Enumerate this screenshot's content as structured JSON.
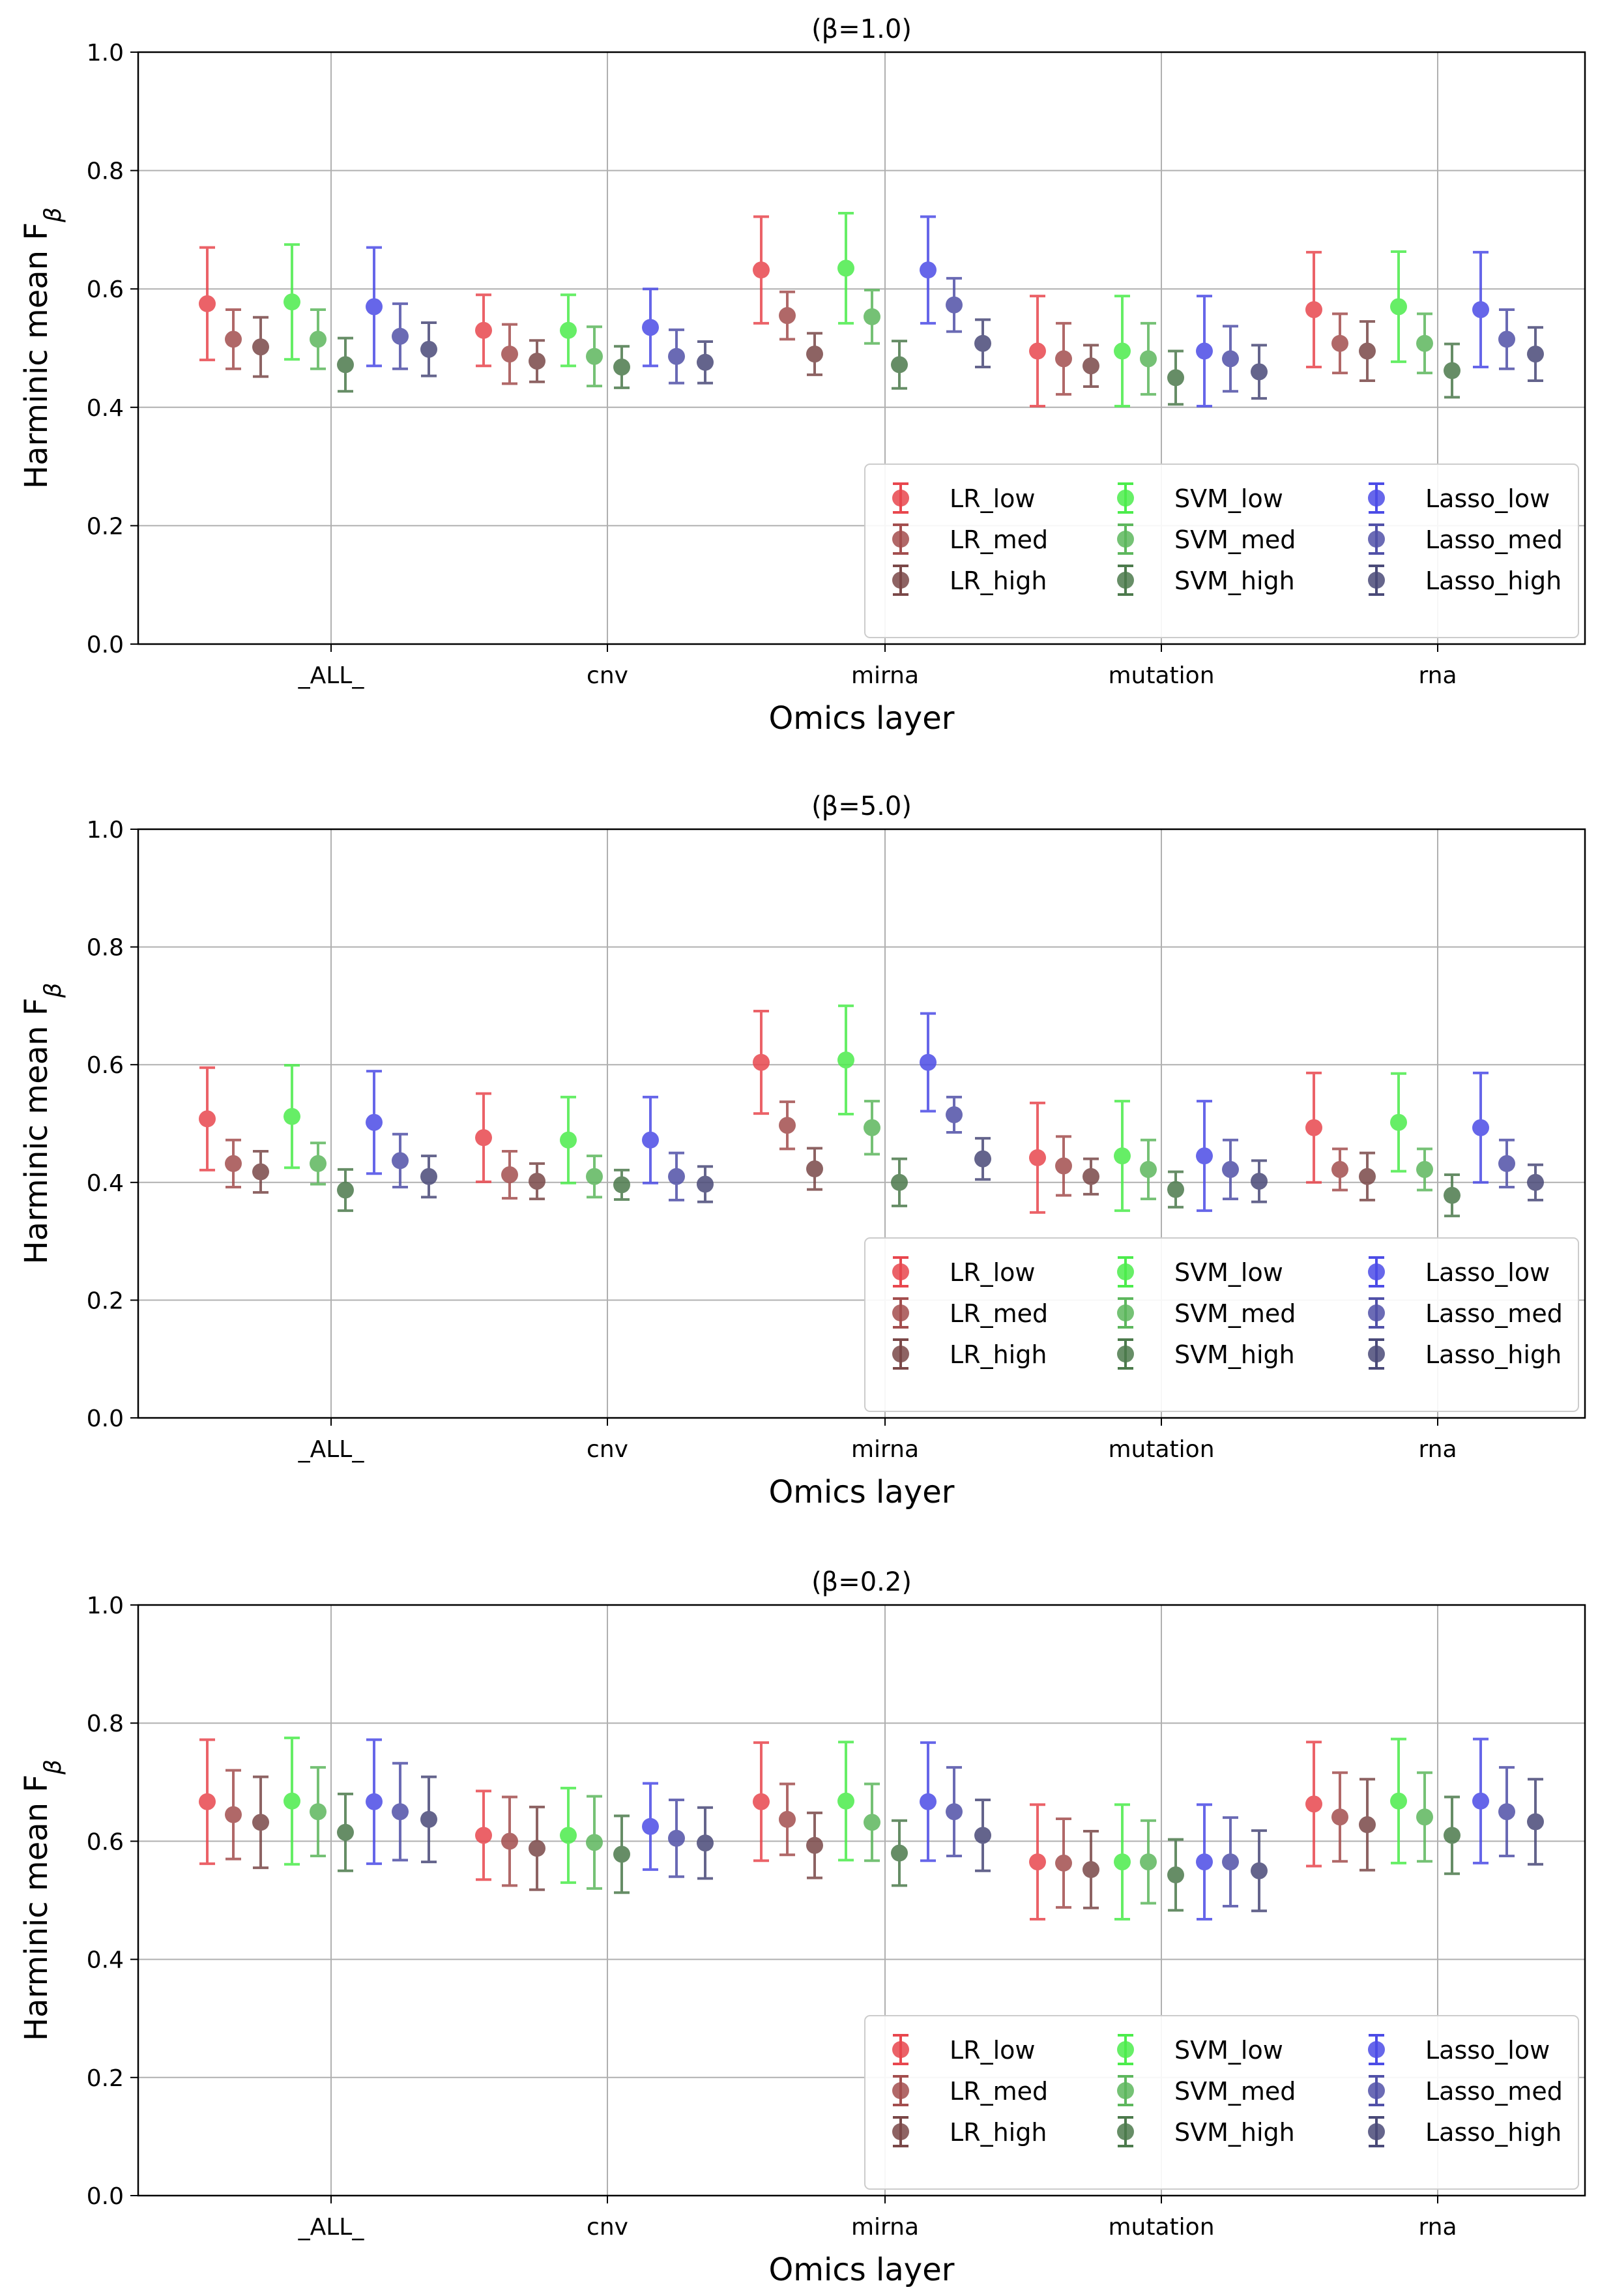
{
  "chart_data": [
    {
      "type": "scatter",
      "title": "(β=1.0)",
      "xlabel": "Omics layer",
      "ylabel": "Harminic mean F",
      "ylabel_sub": "β",
      "ylim": [
        0.0,
        1.0
      ],
      "yticks": [
        "0.0",
        "0.2",
        "0.4",
        "0.6",
        "0.8",
        "1.0"
      ],
      "grid": true,
      "legend_loc": "lower-right",
      "categories": [
        "_ALL_",
        "cnv",
        "mirna",
        "mutation",
        "rna"
      ],
      "series": [
        {
          "name": "LR_low",
          "color": "#e8474e",
          "values": [
            0.575,
            0.53,
            0.632,
            0.495,
            0.565
          ],
          "errors": [
            0.095,
            0.06,
            0.09,
            0.093,
            0.097
          ]
        },
        {
          "name": "LR_med",
          "color": "#a34e4e",
          "values": [
            0.515,
            0.49,
            0.555,
            0.482,
            0.508
          ],
          "errors": [
            0.05,
            0.05,
            0.04,
            0.06,
            0.05
          ]
        },
        {
          "name": "LR_high",
          "color": "#7a4848",
          "values": [
            0.502,
            0.478,
            0.49,
            0.47,
            0.495
          ],
          "errors": [
            0.05,
            0.035,
            0.035,
            0.035,
            0.05
          ]
        },
        {
          "name": "SVM_low",
          "color": "#4cec4c",
          "values": [
            0.578,
            0.53,
            0.635,
            0.495,
            0.57
          ],
          "errors": [
            0.097,
            0.06,
            0.093,
            0.093,
            0.093
          ]
        },
        {
          "name": "SVM_med",
          "color": "#5db75d",
          "values": [
            0.515,
            0.486,
            0.553,
            0.482,
            0.508
          ],
          "errors": [
            0.05,
            0.05,
            0.045,
            0.06,
            0.05
          ]
        },
        {
          "name": "SVM_high",
          "color": "#4c7a4c",
          "values": [
            0.472,
            0.468,
            0.472,
            0.45,
            0.462
          ],
          "errors": [
            0.045,
            0.035,
            0.04,
            0.045,
            0.045
          ]
        },
        {
          "name": "Lasso_low",
          "color": "#4c4ce6",
          "values": [
            0.57,
            0.535,
            0.632,
            0.495,
            0.565
          ],
          "errors": [
            0.1,
            0.065,
            0.09,
            0.093,
            0.097
          ]
        },
        {
          "name": "Lasso_med",
          "color": "#5151a8",
          "values": [
            0.52,
            0.486,
            0.573,
            0.482,
            0.515
          ],
          "errors": [
            0.055,
            0.045,
            0.045,
            0.055,
            0.05
          ]
        },
        {
          "name": "Lasso_high",
          "color": "#4a4a78",
          "values": [
            0.498,
            0.476,
            0.508,
            0.46,
            0.49
          ],
          "errors": [
            0.045,
            0.035,
            0.04,
            0.045,
            0.045
          ]
        }
      ]
    },
    {
      "type": "scatter",
      "title": "(β=5.0)",
      "xlabel": "Omics layer",
      "ylabel": "Harminic mean F",
      "ylabel_sub": "β",
      "ylim": [
        0.0,
        1.0
      ],
      "yticks": [
        "0.0",
        "0.2",
        "0.4",
        "0.6",
        "0.8",
        "1.0"
      ],
      "grid": true,
      "legend_loc": "lower-right",
      "categories": [
        "_ALL_",
        "cnv",
        "mirna",
        "mutation",
        "rna"
      ],
      "series": [
        {
          "name": "LR_low",
          "color": "#e8474e",
          "values": [
            0.508,
            0.476,
            0.604,
            0.442,
            0.493
          ],
          "errors": [
            0.087,
            0.075,
            0.087,
            0.093,
            0.093
          ]
        },
        {
          "name": "LR_med",
          "color": "#a34e4e",
          "values": [
            0.432,
            0.413,
            0.497,
            0.428,
            0.422
          ],
          "errors": [
            0.04,
            0.04,
            0.04,
            0.05,
            0.035
          ]
        },
        {
          "name": "LR_high",
          "color": "#7a4848",
          "values": [
            0.418,
            0.402,
            0.423,
            0.41,
            0.41
          ],
          "errors": [
            0.035,
            0.03,
            0.035,
            0.03,
            0.04
          ]
        },
        {
          "name": "SVM_low",
          "color": "#4cec4c",
          "values": [
            0.512,
            0.472,
            0.608,
            0.445,
            0.502
          ],
          "errors": [
            0.087,
            0.073,
            0.092,
            0.093,
            0.083
          ]
        },
        {
          "name": "SVM_med",
          "color": "#5db75d",
          "values": [
            0.432,
            0.41,
            0.493,
            0.422,
            0.422
          ],
          "errors": [
            0.035,
            0.035,
            0.045,
            0.05,
            0.035
          ]
        },
        {
          "name": "SVM_high",
          "color": "#4c7a4c",
          "values": [
            0.387,
            0.396,
            0.4,
            0.388,
            0.378
          ],
          "errors": [
            0.035,
            0.025,
            0.04,
            0.03,
            0.035
          ]
        },
        {
          "name": "Lasso_low",
          "color": "#4c4ce6",
          "values": [
            0.502,
            0.472,
            0.604,
            0.445,
            0.493
          ],
          "errors": [
            0.087,
            0.073,
            0.083,
            0.093,
            0.093
          ]
        },
        {
          "name": "Lasso_med",
          "color": "#5151a8",
          "values": [
            0.437,
            0.41,
            0.515,
            0.422,
            0.432
          ],
          "errors": [
            0.045,
            0.04,
            0.03,
            0.05,
            0.04
          ]
        },
        {
          "name": "Lasso_high",
          "color": "#4a4a78",
          "values": [
            0.41,
            0.397,
            0.44,
            0.402,
            0.4
          ],
          "errors": [
            0.035,
            0.03,
            0.035,
            0.035,
            0.03
          ]
        }
      ]
    },
    {
      "type": "scatter",
      "title": "(β=0.2)",
      "xlabel": "Omics layer",
      "ylabel": "Harminic mean F",
      "ylabel_sub": "β",
      "ylim": [
        0.0,
        1.0
      ],
      "yticks": [
        "0.0",
        "0.2",
        "0.4",
        "0.6",
        "0.8",
        "1.0"
      ],
      "grid": true,
      "legend_loc": "lower-right",
      "categories": [
        "_ALL_",
        "cnv",
        "mirna",
        "mutation",
        "rna"
      ],
      "series": [
        {
          "name": "LR_low",
          "color": "#e8474e",
          "values": [
            0.667,
            0.61,
            0.667,
            0.565,
            0.663
          ],
          "errors": [
            0.105,
            0.075,
            0.1,
            0.097,
            0.105
          ]
        },
        {
          "name": "LR_med",
          "color": "#a34e4e",
          "values": [
            0.645,
            0.6,
            0.637,
            0.563,
            0.641
          ],
          "errors": [
            0.075,
            0.075,
            0.06,
            0.075,
            0.075
          ]
        },
        {
          "name": "LR_high",
          "color": "#7a4848",
          "values": [
            0.632,
            0.588,
            0.593,
            0.552,
            0.628
          ],
          "errors": [
            0.077,
            0.07,
            0.055,
            0.065,
            0.077
          ]
        },
        {
          "name": "SVM_low",
          "color": "#4cec4c",
          "values": [
            0.668,
            0.61,
            0.668,
            0.565,
            0.668
          ],
          "errors": [
            0.107,
            0.08,
            0.1,
            0.097,
            0.105
          ]
        },
        {
          "name": "SVM_med",
          "color": "#5db75d",
          "values": [
            0.65,
            0.598,
            0.632,
            0.565,
            0.641
          ],
          "errors": [
            0.075,
            0.078,
            0.065,
            0.07,
            0.075
          ]
        },
        {
          "name": "SVM_high",
          "color": "#4c7a4c",
          "values": [
            0.615,
            0.578,
            0.58,
            0.543,
            0.61
          ],
          "errors": [
            0.065,
            0.065,
            0.055,
            0.06,
            0.065
          ]
        },
        {
          "name": "Lasso_low",
          "color": "#4c4ce6",
          "values": [
            0.667,
            0.625,
            0.667,
            0.565,
            0.668
          ],
          "errors": [
            0.105,
            0.073,
            0.1,
            0.097,
            0.105
          ]
        },
        {
          "name": "Lasso_med",
          "color": "#5151a8",
          "values": [
            0.65,
            0.605,
            0.65,
            0.565,
            0.65
          ],
          "errors": [
            0.082,
            0.065,
            0.075,
            0.075,
            0.075
          ]
        },
        {
          "name": "Lasso_high",
          "color": "#4a4a78",
          "values": [
            0.637,
            0.597,
            0.61,
            0.55,
            0.633
          ],
          "errors": [
            0.072,
            0.06,
            0.06,
            0.068,
            0.072
          ]
        }
      ]
    }
  ]
}
